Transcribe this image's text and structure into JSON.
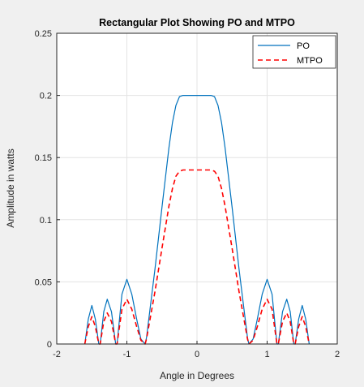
{
  "chart_data": {
    "type": "line",
    "title": "Rectangular Plot Showing PO and MTPO",
    "xlabel": "Angle in Degrees",
    "ylabel": "Amplitude in watts",
    "xlim": [
      -2,
      2
    ],
    "ylim": [
      0,
      0.25
    ],
    "xticks": [
      -2,
      -1,
      0,
      1,
      2
    ],
    "xtick_labels": [
      "-2",
      "-1",
      "0",
      "1",
      "2"
    ],
    "yticks": [
      0,
      0.05,
      0.1,
      0.15,
      0.2,
      0.25
    ],
    "ytick_labels": [
      "0",
      "0.05",
      "0.1",
      "0.15",
      "0.2",
      "0.25"
    ],
    "grid": true,
    "legend_position": "top-right",
    "series": [
      {
        "name": "PO",
        "color": "#0072BD",
        "style": "solid",
        "x": [
          -1.6,
          -1.55,
          -1.5,
          -1.45,
          -1.4,
          -1.38,
          -1.33,
          -1.28,
          -1.22,
          -1.16,
          -1.14,
          -1.07,
          -1.0,
          -0.93,
          -0.86,
          -0.8,
          -0.74,
          -0.72,
          -0.6,
          -0.5,
          -0.4,
          -0.35,
          -0.3,
          -0.25,
          -0.2,
          -0.15,
          0.0,
          0.15,
          0.2,
          0.25,
          0.3,
          0.35,
          0.4,
          0.5,
          0.6,
          0.72,
          0.74,
          0.8,
          0.86,
          0.93,
          1.0,
          1.07,
          1.14,
          1.16,
          1.22,
          1.28,
          1.33,
          1.38,
          1.4,
          1.45,
          1.5,
          1.55,
          1.6
        ],
        "y": [
          0,
          0.02,
          0.031,
          0.02,
          0,
          0,
          0.026,
          0.036,
          0.026,
          0,
          0,
          0.04,
          0.052,
          0.04,
          0.02,
          0.004,
          0,
          0.005,
          0.06,
          0.11,
          0.158,
          0.178,
          0.192,
          0.199,
          0.2,
          0.2,
          0.2,
          0.2,
          0.2,
          0.199,
          0.192,
          0.178,
          0.158,
          0.11,
          0.06,
          0.005,
          0,
          0.004,
          0.02,
          0.04,
          0.052,
          0.04,
          0,
          0,
          0.026,
          0.036,
          0.026,
          0,
          0,
          0.02,
          0.031,
          0.02,
          0
        ]
      },
      {
        "name": "MTPO",
        "color": "#FF0000",
        "style": "dashed",
        "x": [
          -1.6,
          -1.55,
          -1.5,
          -1.45,
          -1.4,
          -1.38,
          -1.33,
          -1.28,
          -1.22,
          -1.16,
          -1.14,
          -1.07,
          -1.0,
          -0.93,
          -0.86,
          -0.8,
          -0.74,
          -0.72,
          -0.6,
          -0.5,
          -0.4,
          -0.35,
          -0.3,
          -0.25,
          -0.2,
          -0.15,
          0.0,
          0.15,
          0.2,
          0.25,
          0.3,
          0.35,
          0.4,
          0.5,
          0.6,
          0.72,
          0.74,
          0.8,
          0.86,
          0.93,
          1.0,
          1.07,
          1.14,
          1.16,
          1.22,
          1.28,
          1.33,
          1.38,
          1.4,
          1.45,
          1.5,
          1.55,
          1.6
        ],
        "y": [
          0,
          0.014,
          0.022,
          0.014,
          0,
          0,
          0.018,
          0.025,
          0.018,
          0,
          0,
          0.028,
          0.036,
          0.028,
          0.014,
          0.003,
          0,
          0.004,
          0.042,
          0.077,
          0.111,
          0.125,
          0.135,
          0.139,
          0.14,
          0.14,
          0.14,
          0.14,
          0.14,
          0.139,
          0.135,
          0.125,
          0.111,
          0.077,
          0.042,
          0.004,
          0,
          0.003,
          0.014,
          0.028,
          0.036,
          0.028,
          0,
          0,
          0.018,
          0.025,
          0.018,
          0,
          0,
          0.014,
          0.022,
          0.014,
          0
        ]
      }
    ]
  }
}
